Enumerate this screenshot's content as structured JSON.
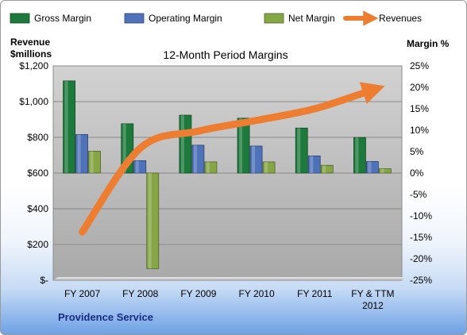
{
  "chart_data": {
    "type": "bar",
    "title": "12-Month Period Margins",
    "left_axis_title": [
      "Revenue",
      "$millions"
    ],
    "right_axis_title": "Margin %",
    "company": "Providence Service",
    "categories": [
      "FY 2007",
      "FY 2008",
      "FY 2009",
      "FY 2010",
      "FY 2011",
      "FY & TTM 2012"
    ],
    "category_labels": [
      [
        "FY 2007"
      ],
      [
        "FY 2008"
      ],
      [
        "FY 2009"
      ],
      [
        "FY 2010"
      ],
      [
        "FY 2011"
      ],
      [
        "FY & TTM",
        "2012"
      ]
    ],
    "left_axis": {
      "min": 0,
      "max": 1200,
      "step": 200,
      "ticks": [
        "$-",
        "$200",
        "$400",
        "$600",
        "$800",
        "$1,000",
        "$1,200"
      ]
    },
    "right_axis": {
      "min": -25,
      "max": 25,
      "step": 5,
      "ticks": [
        "-25%",
        "-20%",
        "-15%",
        "-10%",
        "-5%",
        "0%",
        "5%",
        "10%",
        "15%",
        "20%",
        "25%"
      ]
    },
    "series": [
      {
        "name": "Gross Margin",
        "axis": "right",
        "type": "bar",
        "color": "#1e7a3c",
        "values": [
          21.5,
          11.5,
          13.5,
          12.8,
          10.5,
          8.3
        ]
      },
      {
        "name": "Operating Margin",
        "axis": "right",
        "type": "bar",
        "color": "#4f72b8",
        "values": [
          9.0,
          2.9,
          6.5,
          6.3,
          4.0,
          2.7
        ]
      },
      {
        "name": "Net Margin",
        "axis": "right",
        "type": "bar",
        "color": "#86a545",
        "values": [
          5.1,
          -22.3,
          2.6,
          2.6,
          1.8,
          1.0
        ]
      },
      {
        "name": "Revenues",
        "axis": "left",
        "type": "line",
        "color": "#ed7d31",
        "values": [
          270,
          740,
          835,
          895,
          960,
          1060
        ]
      }
    ],
    "grid": true,
    "legend_position": "top"
  }
}
